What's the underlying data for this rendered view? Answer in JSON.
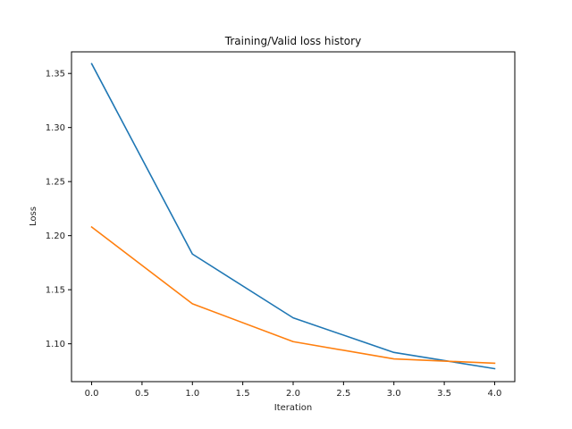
{
  "chart_data": {
    "type": "line",
    "title": "Training/Valid loss history",
    "xlabel": "Iteration",
    "ylabel": "Loss",
    "xlim": [
      -0.2,
      4.2
    ],
    "ylim": [
      1.065,
      1.37
    ],
    "xticks": [
      "0.0",
      "0.5",
      "1.0",
      "1.5",
      "2.0",
      "2.5",
      "3.0",
      "3.5",
      "4.0"
    ],
    "yticks": [
      "1.10",
      "1.15",
      "1.20",
      "1.25",
      "1.30",
      "1.35"
    ],
    "x": [
      0,
      1,
      2,
      3,
      4
    ],
    "grid": false,
    "legend": "none",
    "series": [
      {
        "color": "#1f77b4",
        "values": [
          1.359,
          1.183,
          1.124,
          1.092,
          1.077
        ]
      },
      {
        "color": "#ff7f0e",
        "values": [
          1.208,
          1.137,
          1.102,
          1.086,
          1.082
        ]
      }
    ]
  }
}
